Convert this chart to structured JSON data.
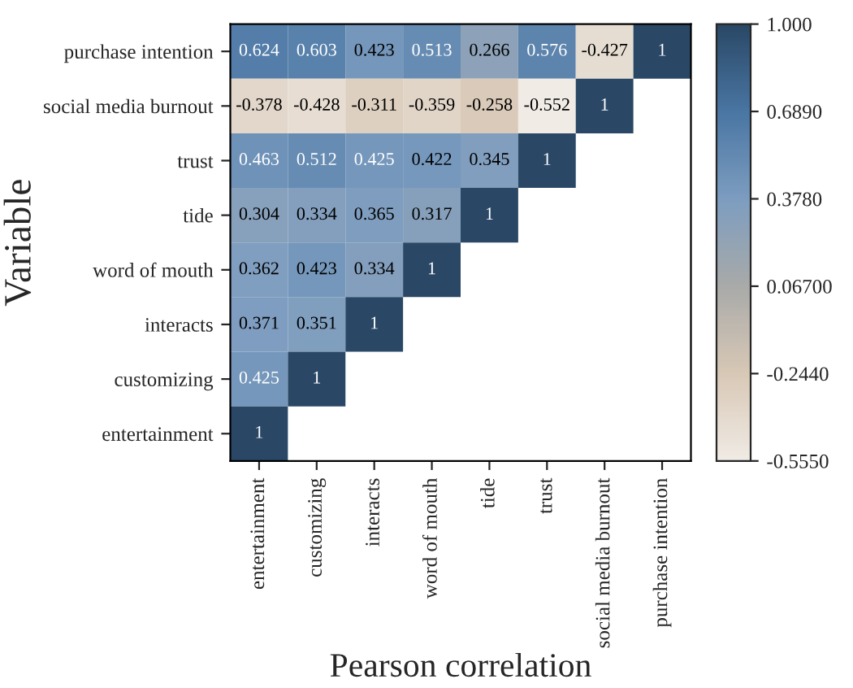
{
  "chart_data": {
    "type": "heatmap",
    "xlabel": "Pearson correlation",
    "ylabel": "Variable",
    "categories": [
      "entertainment",
      "customizing",
      "interacts",
      "word of mouth",
      "tide",
      "trust",
      "social media burnout",
      "purchase intention"
    ],
    "y_categories": [
      "purchase intention",
      "social media burnout",
      "trust",
      "tide",
      "word of mouth",
      "interacts",
      "customizing",
      "entertainment"
    ],
    "cells": [
      [
        0.624,
        0.603,
        0.423,
        0.513,
        0.266,
        0.576,
        -0.427,
        1
      ],
      [
        -0.378,
        -0.428,
        -0.311,
        -0.359,
        -0.258,
        -0.552,
        1,
        null
      ],
      [
        0.463,
        0.512,
        0.425,
        0.422,
        0.345,
        1,
        null,
        null
      ],
      [
        0.304,
        0.334,
        0.365,
        0.317,
        1,
        null,
        null,
        null
      ],
      [
        0.362,
        0.423,
        0.334,
        1,
        null,
        null,
        null,
        null
      ],
      [
        0.371,
        0.351,
        1,
        null,
        null,
        null,
        null,
        null
      ],
      [
        0.425,
        1,
        null,
        null,
        null,
        null,
        null,
        null
      ],
      [
        1,
        null,
        null,
        null,
        null,
        null,
        null,
        null
      ]
    ],
    "data_labels": true,
    "clim": [
      -0.555,
      1.0
    ],
    "cticks": [
      {
        "value": 1.0,
        "label": "1.000"
      },
      {
        "value": 0.689,
        "label": "0.6890"
      },
      {
        "value": 0.378,
        "label": "0.3780"
      },
      {
        "value": 0.067,
        "label": "0.06700"
      },
      {
        "value": -0.244,
        "label": "-0.2440"
      },
      {
        "value": -0.555,
        "label": "-0.5550"
      }
    ]
  }
}
